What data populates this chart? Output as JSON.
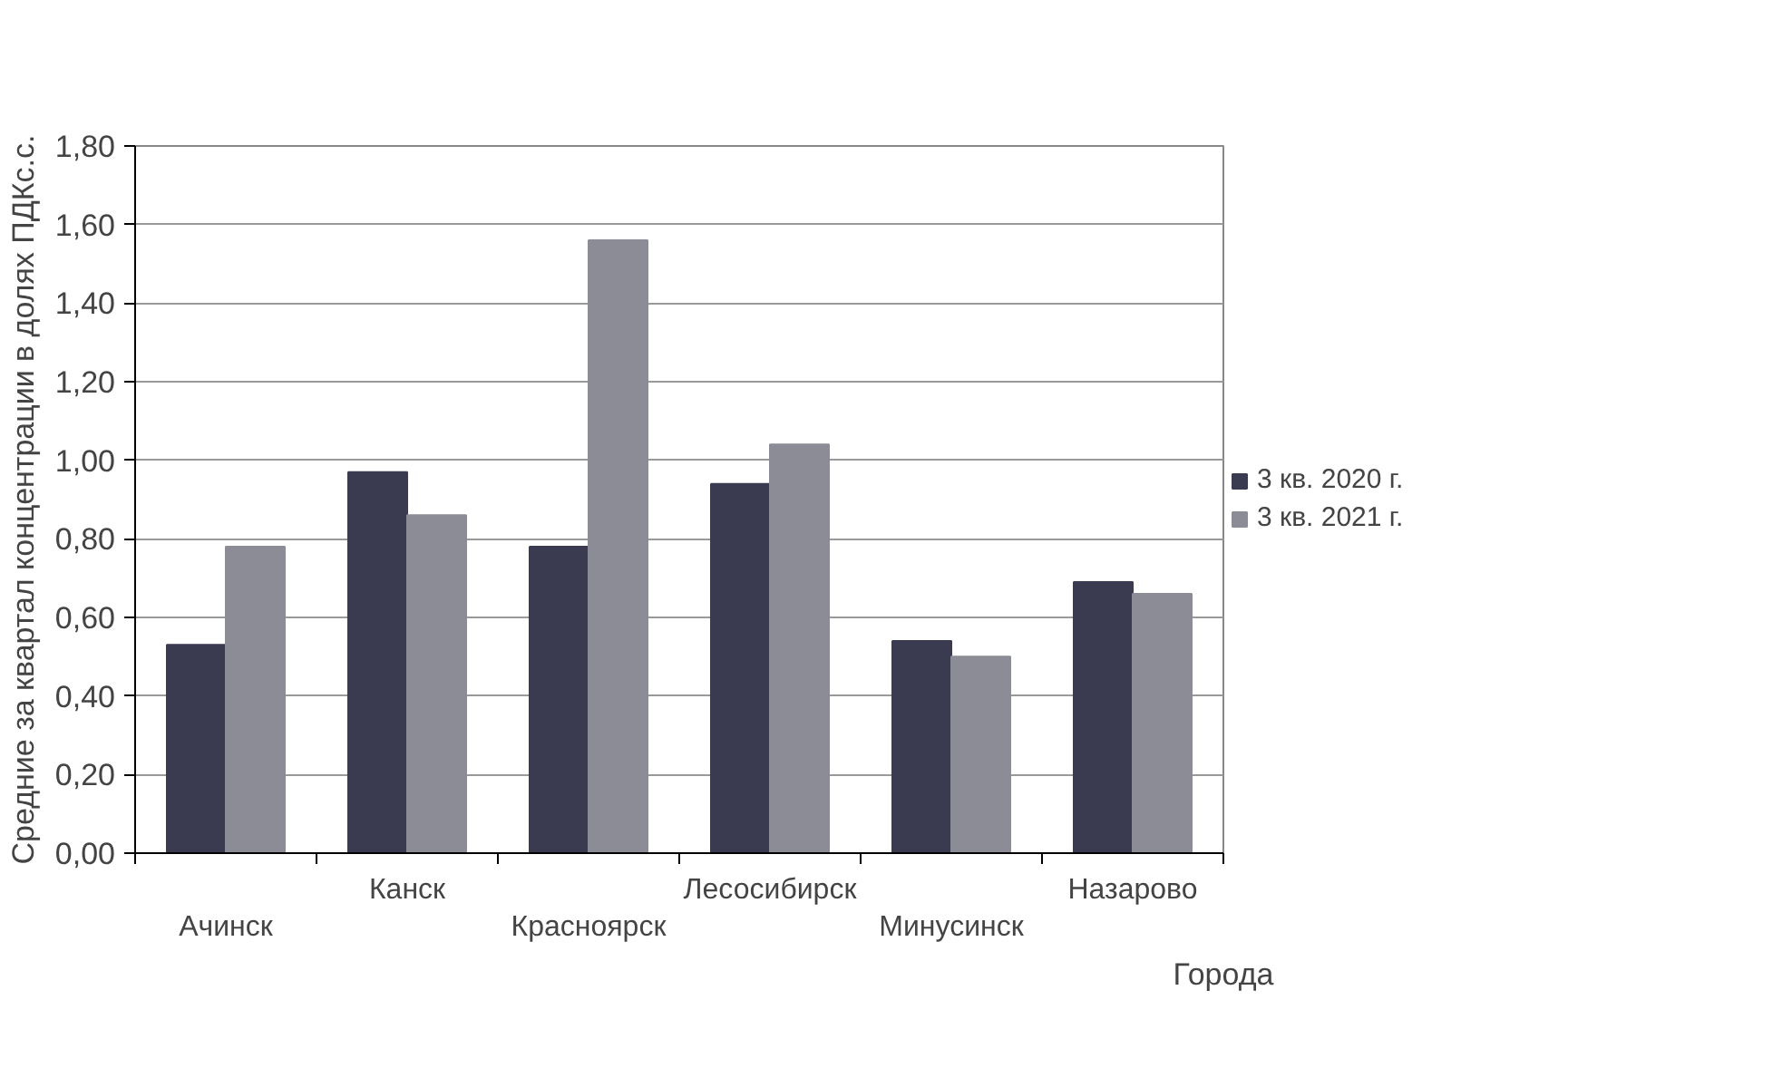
{
  "chart_data": {
    "type": "bar",
    "ylabel": "Средние за квартал концентрации в долях ПДКс.с.",
    "xlabel": "Города",
    "categories": [
      "Ачинск",
      "Канск",
      "Красноярск",
      "Лесосибирск",
      "Минусинск",
      "Назарово"
    ],
    "series": [
      {
        "name": "3 кв. 2020 г.",
        "color": "#3a3a50",
        "values": [
          0.53,
          0.97,
          0.78,
          0.94,
          0.54,
          0.69
        ]
      },
      {
        "name": "3 кв. 2021 г.",
        "color": "#8c8c96",
        "values": [
          0.78,
          0.86,
          1.56,
          1.04,
          0.5,
          0.66
        ]
      }
    ],
    "ylim": [
      0,
      1.8
    ],
    "yticks": [
      {
        "value": 0,
        "label": "0,00"
      },
      {
        "value": 0.2,
        "label": "0,20"
      },
      {
        "value": 0.4,
        "label": "0,40"
      },
      {
        "value": 0.6,
        "label": "0,60"
      },
      {
        "value": 0.8,
        "label": "0,80"
      },
      {
        "value": 1.0,
        "label": "1,00"
      },
      {
        "value": 1.2,
        "label": "1,20"
      },
      {
        "value": 1.4,
        "label": "1,40"
      },
      {
        "value": 1.6,
        "label": "1,60"
      },
      {
        "value": 1.8,
        "label": "1,80"
      }
    ],
    "grid": "y",
    "legend": "right"
  }
}
